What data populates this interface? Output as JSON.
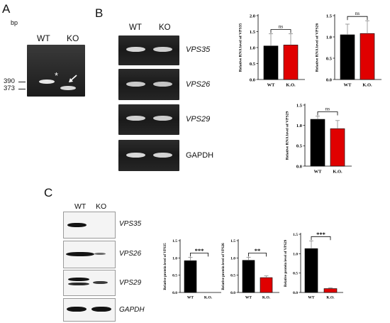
{
  "panel_a": {
    "letter": "A",
    "unit": "bp",
    "lanes": [
      "WT",
      "KO"
    ],
    "markers": [
      "390",
      "373"
    ],
    "wt_mark": "*",
    "ko_mark": "arrow-icon"
  },
  "panel_b": {
    "letter": "B",
    "lanes": [
      "WT",
      "KO"
    ],
    "genes": [
      "VPS35",
      "VPS26",
      "VPS29",
      "GAPDH"
    ]
  },
  "panel_c": {
    "letter": "C",
    "lanes": [
      "WT",
      "KO"
    ],
    "genes": [
      "VPS35",
      "VPS26",
      "VPS29",
      "GAPDH"
    ]
  },
  "colors": {
    "wt": "#000000",
    "ko": "#e00000"
  },
  "chart_data": [
    {
      "type": "bar",
      "ylabel": "Relative RNA level of VPS35",
      "categories": [
        "WT",
        "K.O."
      ],
      "values": [
        1.05,
        1.08
      ],
      "errors": [
        0.38,
        0.35
      ],
      "ylim": [
        0,
        2.0
      ],
      "yticks": [
        "0.0",
        "0.5",
        "1.0",
        "1.5",
        "2.0"
      ],
      "significance": "ns"
    },
    {
      "type": "bar",
      "ylabel": "Relative RNA level of VPS26",
      "categories": [
        "WT",
        "K.O."
      ],
      "values": [
        1.05,
        1.08
      ],
      "errors": [
        0.25,
        0.3
      ],
      "ylim": [
        0,
        1.5
      ],
      "yticks": [
        "0.0",
        "0.5",
        "1.0",
        "1.5"
      ],
      "significance": "ns"
    },
    {
      "type": "bar",
      "ylabel": "Relative RNA level of VPS29",
      "categories": [
        "WT",
        "K.O."
      ],
      "values": [
        1.15,
        0.92
      ],
      "errors": [
        0.08,
        0.2
      ],
      "ylim": [
        0,
        1.5
      ],
      "yticks": [
        "0.0",
        "0.5",
        "1.0",
        "1.5"
      ],
      "significance": "ns"
    },
    {
      "type": "bar",
      "ylabel": "Relative protein level of VPS35",
      "categories": [
        "WT",
        "K.O."
      ],
      "values": [
        0.92,
        0.0
      ],
      "errors": [
        0.1,
        0.0
      ],
      "ylim": [
        0,
        1.5
      ],
      "yticks": [
        "0.0",
        "0.5",
        "1.0",
        "1.5"
      ],
      "significance": "***"
    },
    {
      "type": "bar",
      "ylabel": "Relative protein level of VPS26",
      "categories": [
        "WT",
        "K.O."
      ],
      "values": [
        0.93,
        0.43
      ],
      "errors": [
        0.09,
        0.05
      ],
      "ylim": [
        0,
        1.5
      ],
      "yticks": [
        "0.0",
        "0.5",
        "1.0",
        "1.5"
      ],
      "significance": "**"
    },
    {
      "type": "bar",
      "ylabel": "Relative protein level of VPS29",
      "categories": [
        "WT",
        "K.O."
      ],
      "values": [
        1.13,
        0.1
      ],
      "errors": [
        0.2,
        0.02
      ],
      "ylim": [
        0,
        1.5
      ],
      "yticks": [
        "0.0",
        "0.5",
        "1.0",
        "1.5"
      ],
      "significance": "***"
    }
  ]
}
